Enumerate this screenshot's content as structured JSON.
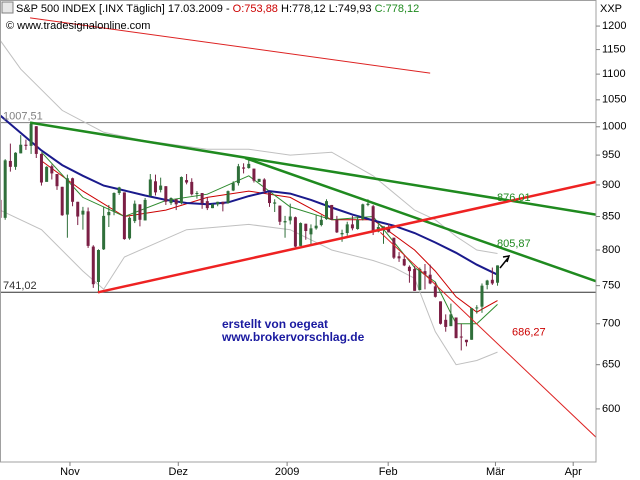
{
  "chart_data": {
    "type": "candlestick",
    "header": {
      "title": "S&P 500 INDEX [.INX  Täglich] 17.03.2009 -",
      "open": "O:753,88",
      "high_low": "H:778,12 L:749,93",
      "close": "C:778,12"
    },
    "source": "© www.tradesignalonline.com",
    "unit_label": "XXP",
    "annotations": [
      "erstellt von oegeat",
      "www.brokervorschlag.de"
    ],
    "log_scale": true,
    "xlim": [
      0,
      115
    ],
    "ylim": [
      545,
      1258
    ],
    "yticks": [
      600,
      650,
      700,
      750,
      800,
      850,
      900,
      950,
      1000,
      1050,
      1100,
      1150,
      1200
    ],
    "xticks": [
      {
        "value": 13.5,
        "label": "Nov"
      },
      {
        "value": 34.4,
        "label": "Dez"
      },
      {
        "value": 55.4,
        "label": "2009"
      },
      {
        "value": 74.9,
        "label": "Feb"
      },
      {
        "value": 95.6,
        "label": "Mär"
      },
      {
        "value": 110.6,
        "label": "Apr"
      }
    ],
    "up_color": "#2f6f3a",
    "down_color": "#7b1f45",
    "open": [
      876,
      848,
      940,
      930,
      953,
      968,
      966,
      1001,
      952,
      905,
      931,
      918,
      897,
      853,
      911,
      873,
      853,
      858,
      805,
      755,
      801,
      852,
      858,
      887,
      888,
      817,
      843,
      869,
      844,
      882,
      906,
      892,
      898,
      871,
      877,
      871,
      908,
      905,
      886,
      887,
      874,
      863,
      869,
      873,
      871,
      891,
      903,
      929,
      928,
      927,
      905,
      909,
      888,
      870,
      867,
      841,
      844,
      849,
      806,
      839,
      823,
      832,
      837,
      846,
      868,
      845,
      823,
      825,
      838,
      831,
      846,
      868,
      866,
      827,
      830,
      833,
      818,
      791,
      787,
      776,
      773,
      744,
      770,
      765,
      749,
      729,
      705,
      697,
      708,
      684,
      680,
      680,
      720,
      722,
      751,
      758,
      754
    ],
    "high": [
      893,
      943,
      970,
      955,
      985,
      977,
      1007.51,
      1001,
      953,
      931,
      934,
      918,
      897,
      917,
      912,
      873,
      865,
      864,
      807,
      801,
      865,
      868,
      888,
      897,
      888,
      850,
      875,
      869,
      879,
      918,
      917,
      912,
      898,
      880,
      877,
      914,
      918,
      911,
      890,
      887,
      880,
      870,
      873,
      873,
      891,
      906,
      935,
      936,
      943,
      927,
      910,
      911,
      888,
      877,
      867,
      851,
      870,
      850,
      841,
      839,
      838,
      852,
      852,
      877,
      868,
      851,
      830,
      842,
      851,
      851,
      870,
      877,
      868,
      838,
      835,
      839,
      818,
      797,
      793,
      778,
      777,
      775,
      780,
      779,
      755,
      729,
      712,
      726,
      708,
      700,
      680,
      720,
      724,
      753,
      758,
      775,
      778.12
    ],
    "low": [
      846,
      845,
      922,
      925,
      953,
      959,
      952,
      945,
      899,
      906,
      909,
      892,
      851,
      818,
      866,
      837,
      830,
      803,
      747,
      741.02,
      800,
      834,
      852,
      884,
      815,
      815,
      840,
      835,
      844,
      882,
      883,
      888,
      868,
      868,
      860,
      869,
      901,
      883,
      878,
      862,
      860,
      863,
      866,
      858,
      870,
      890,
      899,
      919,
      927,
      904,
      905,
      887,
      865,
      857,
      837,
      818,
      838,
      804,
      806,
      815,
      807,
      830,
      835,
      845,
      845,
      825,
      812,
      821,
      829,
      830,
      844,
      866,
      822,
      826,
      809,
      826,
      787,
      783,
      777,
      754,
      743,
      744,
      745,
      752,
      734,
      699,
      690,
      697,
      682,
      667,
      672,
      680,
      713,
      714,
      745,
      751,
      749.93
    ],
    "close": [
      848,
      941,
      930,
      954,
      968,
      966,
      1005,
      952,
      904,
      930,
      919,
      898,
      852,
      911,
      873,
      850,
      859,
      806,
      752,
      800,
      851,
      857,
      887,
      896,
      816,
      848,
      870,
      845,
      876,
      909,
      888,
      899,
      873,
      879,
      869,
      913,
      904,
      885,
      887,
      871,
      863,
      869,
      873,
      869,
      890,
      903,
      931,
      927,
      935,
      907,
      910,
      890,
      871,
      872,
      842,
      843,
      850,
      805,
      840,
      828,
      832,
      836,
      845,
      874,
      845,
      826,
      825,
      838,
      832,
      845,
      869,
      870,
      828,
      834,
      835,
      826,
      789,
      788,
      778,
      770,
      743,
      773,
      765,
      753,
      735,
      700,
      696,
      712,
      682,
      683,
      677,
      720,
      721,
      750,
      757,
      753,
      778
    ],
    "series": [
      {
        "color": "#c0c0c0",
        "width": 1,
        "x": [
          0,
          4,
          12,
          20,
          28,
          40,
          48,
          56,
          64,
          72,
          80,
          84,
          88,
          92,
          96
        ],
        "values": [
          1170,
          1110,
          1030,
          990,
          975,
          960,
          960,
          950,
          955,
          915,
          860,
          845,
          820,
          800,
          795
        ]
      },
      {
        "color": "#c0c0c0",
        "width": 1,
        "x": [
          0,
          8,
          16,
          20,
          24,
          36,
          48,
          56,
          64,
          72,
          76,
          80,
          84,
          88,
          92,
          96
        ],
        "values": [
          860,
          830,
          770,
          745,
          790,
          830,
          838,
          830,
          800,
          785,
          775,
          760,
          690,
          650,
          655,
          665
        ]
      },
      {
        "color": "#cc0000",
        "width": 1,
        "x": [
          8,
          16,
          24,
          32,
          40,
          48,
          56,
          64,
          72,
          80,
          84,
          88,
          92,
          96
        ],
        "values": [
          940,
          890,
          850,
          860,
          880,
          890,
          880,
          845,
          845,
          800,
          770,
          735,
          715,
          730
        ]
      },
      {
        "color": "#2e8b2e",
        "width": 1,
        "x": [
          8,
          16,
          24,
          32,
          40,
          48,
          56,
          64,
          72,
          80,
          84,
          88,
          92,
          96
        ],
        "values": [
          955,
          880,
          850,
          875,
          885,
          915,
          865,
          845,
          850,
          775,
          755,
          700,
          700,
          725
        ]
      },
      {
        "color": "#1a1a8c",
        "width": 2,
        "x": [
          0,
          4,
          8,
          12,
          16,
          20,
          24,
          28,
          32,
          36,
          40,
          44,
          48,
          52,
          56,
          60,
          64,
          68,
          72,
          76,
          80,
          84,
          88,
          92,
          96
        ],
        "values": [
          1021,
          989,
          958,
          933,
          915,
          899,
          891,
          883,
          876,
          871,
          869,
          872,
          882,
          890,
          886,
          876,
          864,
          853,
          844,
          836,
          825,
          811,
          796,
          779,
          765
        ]
      }
    ],
    "trendlines": [
      {
        "color": "#dd2222",
        "width": 1,
        "x": [
          5.8,
          83
        ],
        "values": [
          1218,
          1102
        ]
      },
      {
        "color": "#1f8a1f",
        "width": 2.5,
        "x": [
          5.8,
          115
        ],
        "values": [
          1007.51,
          853
        ]
      },
      {
        "color": "#1f8a1f",
        "width": 2.5,
        "x": [
          47.3,
          115
        ],
        "values": [
          945,
          756
        ]
      },
      {
        "color": "#ee2222",
        "width": 2.5,
        "x": [
          18.9,
          115
        ],
        "values": [
          741.02,
          905
        ]
      },
      {
        "color": "#dd2222",
        "width": 1,
        "x": [
          73.4,
          115
        ],
        "values": [
          826,
          570
        ]
      }
    ],
    "levels": [
      {
        "value": 1007.51,
        "label": "1007,51",
        "color": "#808080"
      },
      {
        "value": 741.02,
        "label": "741,02",
        "color": "#303030"
      }
    ],
    "price_labels": [
      {
        "value": 876.01,
        "label": "876,01",
        "color": "#1f8a1f"
      },
      {
        "value": 805.87,
        "label": "805,87",
        "color": "#1f8a1f"
      },
      {
        "value": 686.27,
        "label": "686,27",
        "color": "#cc0000"
      }
    ]
  }
}
